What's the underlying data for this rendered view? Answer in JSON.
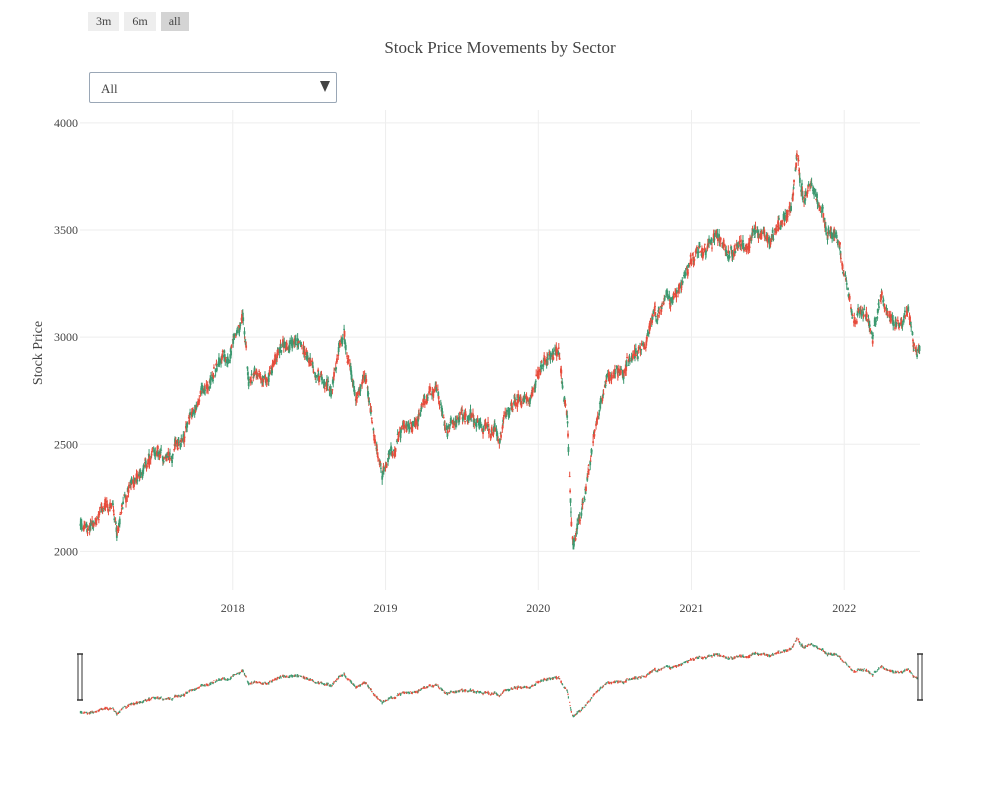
{
  "range_selector": {
    "buttons": [
      {
        "label": "3m",
        "active": false
      },
      {
        "label": "6m",
        "active": false
      },
      {
        "label": "all",
        "active": true
      }
    ]
  },
  "dropdown": {
    "selected": "All"
  },
  "colors": {
    "increasing": "#3d9970",
    "decreasing": "#e74c3c",
    "grid": "#eeeeee",
    "text": "#444444"
  },
  "chart_data": {
    "type": "candlestick",
    "title": "Stock Price Movements by Sector",
    "xlabel": "",
    "ylabel": "Stock Price",
    "ylim": [
      1820,
      4060
    ],
    "xlim": [
      "2017-01-01",
      "2022-07-01"
    ],
    "y_ticks": [
      2000,
      2500,
      3000,
      3500,
      4000
    ],
    "x_ticks": [
      "2018-01-01",
      "2019-01-01",
      "2020-01-01",
      "2021-01-01",
      "2022-01-01"
    ],
    "x_tick_labels": [
      "2018",
      "2019",
      "2020",
      "2021",
      "2022"
    ],
    "grid": true,
    "rangeslider": true,
    "price_path": [
      [
        "2017-01-01",
        2120
      ],
      [
        "2017-01-20",
        2100
      ],
      [
        "2017-02-10",
        2150
      ],
      [
        "2017-03-01",
        2200
      ],
      [
        "2017-03-20",
        2190
      ],
      [
        "2017-04-01",
        2090
      ],
      [
        "2017-04-20",
        2250
      ],
      [
        "2017-05-15",
        2350
      ],
      [
        "2017-06-15",
        2420
      ],
      [
        "2017-07-15",
        2430
      ],
      [
        "2017-08-10",
        2460
      ],
      [
        "2017-09-01",
        2520
      ],
      [
        "2017-10-01",
        2650
      ],
      [
        "2017-11-01",
        2780
      ],
      [
        "2017-12-01",
        2870
      ],
      [
        "2018-01-05",
        2980
      ],
      [
        "2018-01-25",
        3080
      ],
      [
        "2018-02-08",
        2760
      ],
      [
        "2018-03-01",
        2850
      ],
      [
        "2018-04-01",
        2820
      ],
      [
        "2018-05-01",
        2960
      ],
      [
        "2018-06-01",
        2980
      ],
      [
        "2018-07-01",
        2870
      ],
      [
        "2018-08-01",
        2820
      ],
      [
        "2018-08-25",
        2770
      ],
      [
        "2018-09-10",
        2880
      ],
      [
        "2018-09-25",
        3000
      ],
      [
        "2018-10-20",
        2700
      ],
      [
        "2018-11-15",
        2760
      ],
      [
        "2018-12-01",
        2600
      ],
      [
        "2018-12-24",
        2350
      ],
      [
        "2019-01-15",
        2450
      ],
      [
        "2019-02-10",
        2560
      ],
      [
        "2019-03-10",
        2600
      ],
      [
        "2019-04-01",
        2680
      ],
      [
        "2019-05-01",
        2720
      ],
      [
        "2019-06-01",
        2560
      ],
      [
        "2019-07-01",
        2640
      ],
      [
        "2019-08-01",
        2620
      ],
      [
        "2019-09-01",
        2570
      ],
      [
        "2019-10-01",
        2520
      ],
      [
        "2019-11-01",
        2680
      ],
      [
        "2019-12-15",
        2780
      ],
      [
        "2020-01-10",
        2870
      ],
      [
        "2020-02-01",
        2950
      ],
      [
        "2020-02-20",
        2920
      ],
      [
        "2020-03-10",
        2600
      ],
      [
        "2020-03-20",
        2100
      ],
      [
        "2020-03-25",
        1980
      ],
      [
        "2020-04-15",
        2250
      ],
      [
        "2020-05-15",
        2550
      ],
      [
        "2020-06-10",
        2780
      ],
      [
        "2020-07-01",
        2820
      ],
      [
        "2020-08-01",
        2880
      ],
      [
        "2020-09-01",
        2900
      ],
      [
        "2020-10-01",
        3050
      ],
      [
        "2020-11-01",
        3150
      ],
      [
        "2020-12-01",
        3250
      ],
      [
        "2021-01-01",
        3350
      ],
      [
        "2021-02-01",
        3420
      ],
      [
        "2021-03-01",
        3480
      ],
      [
        "2021-04-01",
        3400
      ],
      [
        "2021-05-01",
        3460
      ],
      [
        "2021-06-01",
        3500
      ],
      [
        "2021-07-01",
        3440
      ],
      [
        "2021-08-01",
        3520
      ],
      [
        "2021-08-25",
        3600
      ],
      [
        "2021-09-10",
        3850
      ],
      [
        "2021-09-25",
        3650
      ],
      [
        "2021-10-15",
        3720
      ],
      [
        "2021-11-01",
        3650
      ],
      [
        "2021-11-20",
        3520
      ],
      [
        "2021-12-10",
        3480
      ],
      [
        "2022-01-01",
        3300
      ],
      [
        "2022-01-25",
        3100
      ],
      [
        "2022-02-15",
        3150
      ],
      [
        "2022-03-10",
        3000
      ],
      [
        "2022-04-01",
        3200
      ],
      [
        "2022-05-01",
        3050
      ],
      [
        "2022-06-01",
        3100
      ],
      [
        "2022-06-20",
        2950
      ],
      [
        "2022-06-30",
        2990
      ]
    ]
  }
}
